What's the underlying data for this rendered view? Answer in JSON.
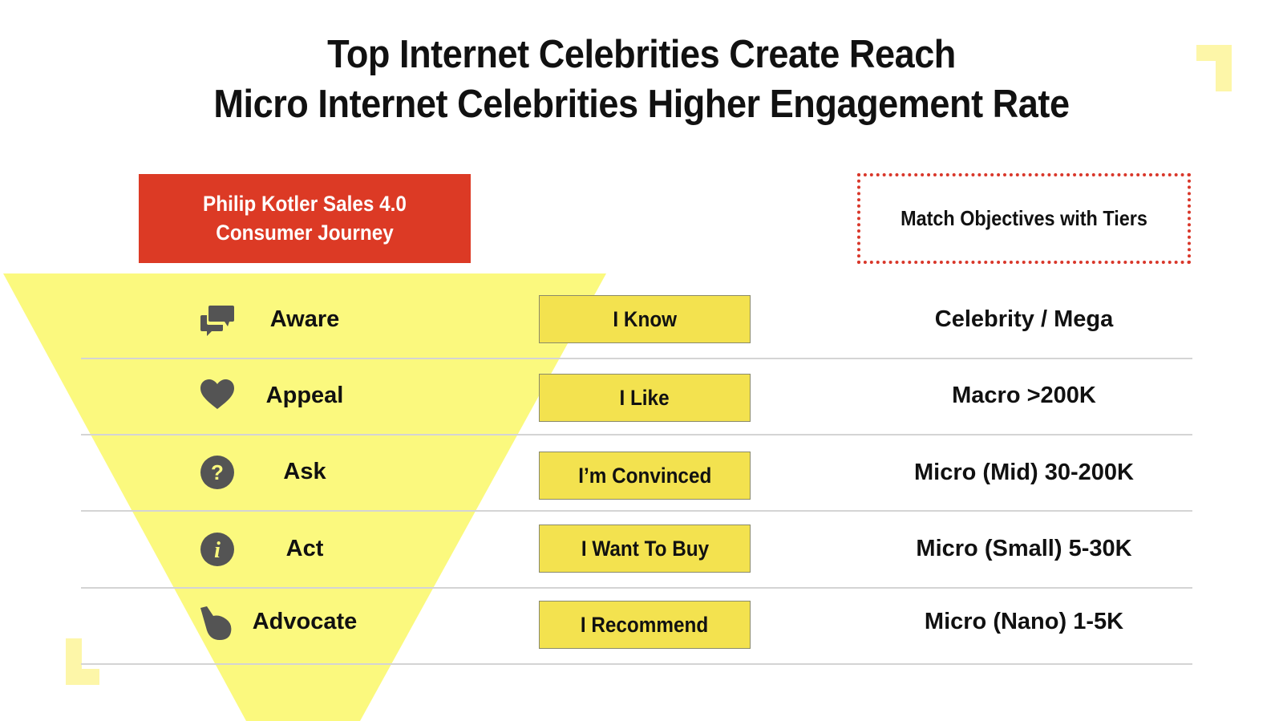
{
  "title": {
    "line1": "Top Internet Celebrities Create Reach",
    "line2": "Micro Internet Celebrities Higher Engagement Rate"
  },
  "journey_box": {
    "line1": "Philip Kotler Sales 4.0",
    "line2": "Consumer Journey"
  },
  "tiers_header": "Match Objectives with Tiers",
  "colors": {
    "funnel": "#fbf97e",
    "red_box": "#dc3a25",
    "feel_box": "#f3e24f",
    "corner_accent": "#fdf6a8",
    "icon": "#545454"
  },
  "rows": [
    {
      "stage": "Aware",
      "icon": "speech-bubbles-icon",
      "feeling": "I Know",
      "tier": "Celebrity / Mega"
    },
    {
      "stage": "Appeal",
      "icon": "heart-icon",
      "feeling": "I Like",
      "tier": "Macro >200K"
    },
    {
      "stage": "Ask",
      "icon": "question-icon",
      "feeling": "I’m Convinced",
      "tier": "Micro (Mid) 30-200K"
    },
    {
      "stage": "Act",
      "icon": "info-icon",
      "feeling": "I Want To Buy",
      "tier": "Micro (Small) 5-30K"
    },
    {
      "stage": "Advocate",
      "icon": "hand-pointer-icon",
      "feeling": "I Recommend",
      "tier": "Micro (Nano) 1-5K"
    }
  ]
}
